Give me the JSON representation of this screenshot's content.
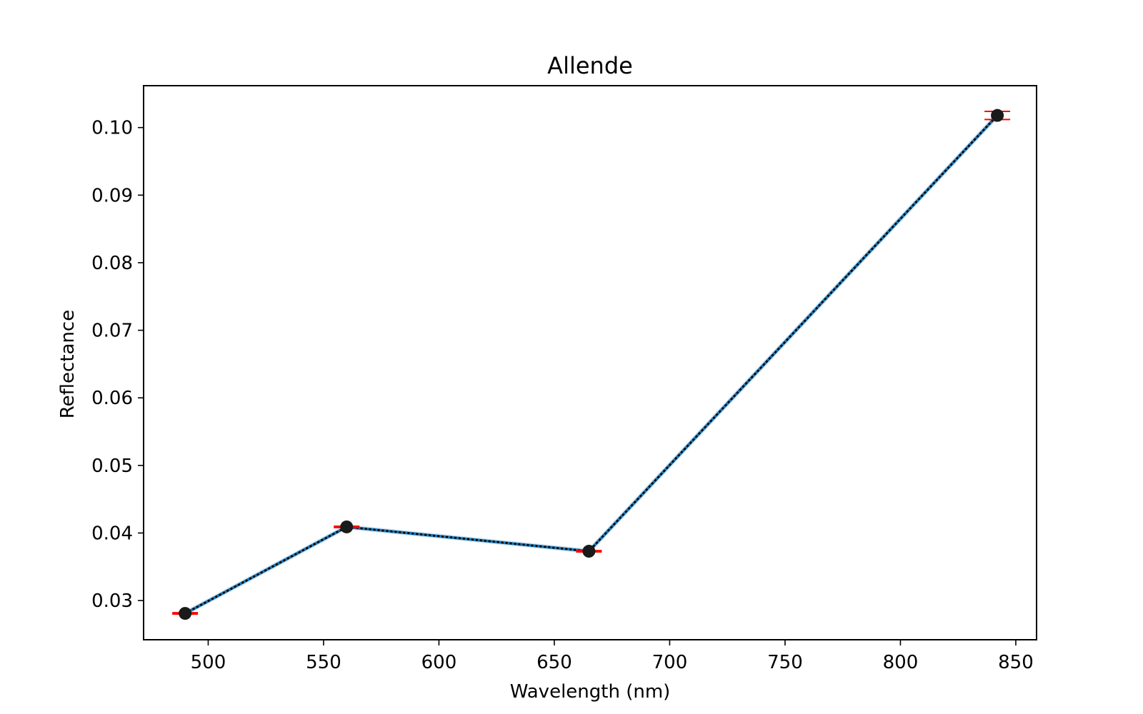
{
  "chart_data": {
    "type": "line",
    "title": "Allende",
    "xlabel": "Wavelength (nm)",
    "ylabel": "Reflectance",
    "xlim": [
      472,
      859
    ],
    "ylim": [
      0.0242,
      0.1062
    ],
    "xticks": [
      500,
      550,
      600,
      650,
      700,
      750,
      800,
      850
    ],
    "yticks": [
      0.03,
      0.04,
      0.05,
      0.06,
      0.07,
      0.08,
      0.09,
      0.1
    ],
    "xtick_labels": [
      "500",
      "550",
      "600",
      "650",
      "700",
      "750",
      "800",
      "850"
    ],
    "ytick_labels": [
      "0.03",
      "0.04",
      "0.05",
      "0.06",
      "0.07",
      "0.08",
      "0.09",
      "0.10"
    ],
    "grid": false,
    "legend": "none",
    "series": [
      {
        "x": [
          490,
          560,
          665,
          842
        ],
        "y": [
          0.0281,
          0.0409,
          0.0373,
          0.1018
        ],
        "yerr": [
          0.0001,
          0.0001,
          0.0001,
          0.0006
        ],
        "line_color": "#1f77b4",
        "dash_color": "#000000",
        "marker_color": "#1a1a1a",
        "errorbar_color": "#ff0000"
      }
    ]
  }
}
